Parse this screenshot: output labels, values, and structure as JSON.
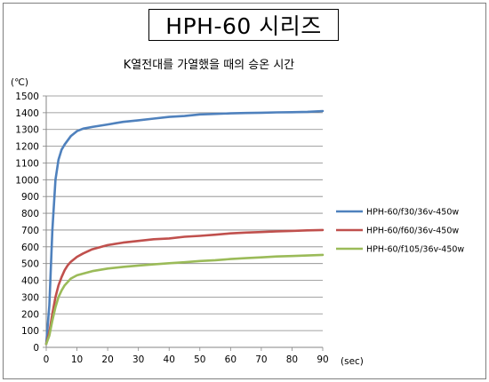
{
  "main_title": "HPH-60 시리즈",
  "chart_data": {
    "type": "line",
    "title": "K열전대를 가열했을 때의 승온 시간",
    "ylabel": "(℃)",
    "xlabel": "(sec)",
    "xlim": [
      0,
      90
    ],
    "ylim": [
      0,
      1500
    ],
    "x_ticks": [
      0,
      10,
      20,
      30,
      40,
      50,
      60,
      70,
      80,
      90
    ],
    "y_ticks": [
      0,
      100,
      200,
      300,
      400,
      500,
      600,
      700,
      800,
      900,
      1000,
      1100,
      1200,
      1300,
      1400,
      1500
    ],
    "grid": "horizontal",
    "legend_position": "right",
    "series": [
      {
        "name": "HPH-60/f30/36v-450w",
        "color": "#4f81bd",
        "x": [
          0,
          1,
          2,
          3,
          4,
          5,
          6,
          8,
          10,
          12,
          15,
          20,
          25,
          30,
          35,
          40,
          45,
          50,
          55,
          60,
          65,
          70,
          75,
          80,
          85,
          90
        ],
        "y": [
          20,
          250,
          700,
          1000,
          1120,
          1180,
          1210,
          1260,
          1290,
          1305,
          1315,
          1330,
          1345,
          1355,
          1365,
          1375,
          1380,
          1390,
          1393,
          1396,
          1398,
          1400,
          1402,
          1403,
          1405,
          1410
        ]
      },
      {
        "name": "HPH-60/f60/36v-450w",
        "color": "#c0504d",
        "x": [
          0,
          1,
          2,
          3,
          4,
          5,
          6,
          7,
          8,
          10,
          12,
          15,
          20,
          25,
          30,
          35,
          40,
          45,
          50,
          55,
          60,
          65,
          70,
          75,
          80,
          85,
          90
        ],
        "y": [
          20,
          90,
          200,
          300,
          370,
          420,
          460,
          490,
          510,
          540,
          560,
          585,
          610,
          625,
          635,
          645,
          650,
          660,
          665,
          672,
          680,
          685,
          688,
          692,
          695,
          698,
          700
        ]
      },
      {
        "name": "HPH-60/f105/36v-450w",
        "color": "#9bbb59",
        "x": [
          0,
          1,
          2,
          3,
          4,
          5,
          6,
          7,
          8,
          10,
          12,
          15,
          20,
          25,
          30,
          35,
          40,
          45,
          50,
          55,
          60,
          65,
          70,
          75,
          80,
          85,
          90
        ],
        "y": [
          20,
          70,
          160,
          240,
          300,
          340,
          370,
          390,
          410,
          430,
          440,
          455,
          470,
          480,
          488,
          495,
          502,
          508,
          515,
          520,
          527,
          532,
          537,
          542,
          545,
          548,
          552
        ]
      }
    ]
  }
}
